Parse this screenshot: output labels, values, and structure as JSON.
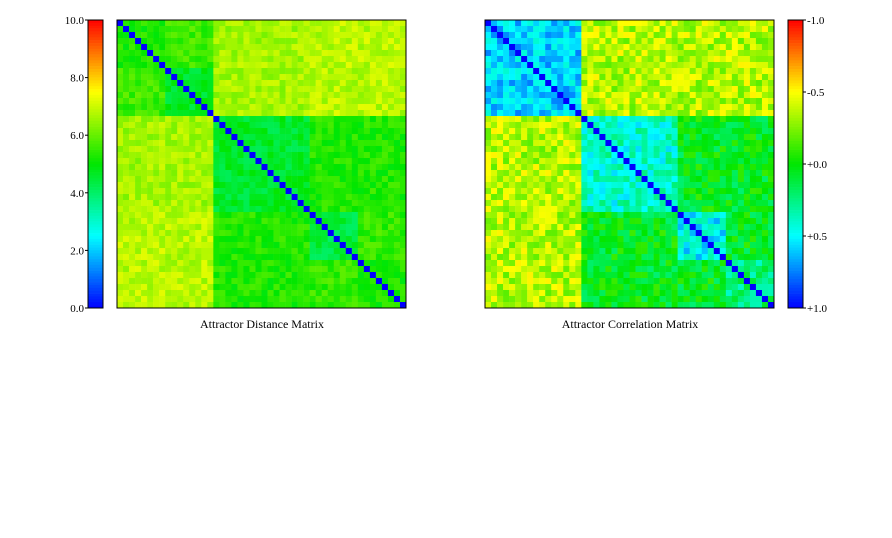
{
  "chart_data": [
    {
      "type": "heatmap",
      "title": "Attractor Distance Matrix",
      "size": 48,
      "diagonal_value": 0.0,
      "colorbar": {
        "position": "left",
        "range": [
          0.0,
          10.0
        ],
        "tick_labels": [
          "0.0",
          "2.0",
          "4.0",
          "6.0",
          "8.0",
          "10.0"
        ],
        "tick_values": [
          0.0,
          2.0,
          4.0,
          6.0,
          8.0,
          10.0
        ],
        "colormap": "rainbow (blue→cyan→green→yellow→red, low→high)"
      },
      "blocks": [
        {
          "rows": [
            0,
            7
          ],
          "cols": [
            0,
            7
          ],
          "value": 5.2
        },
        {
          "rows": [
            0,
            7
          ],
          "cols": [
            8,
            15
          ],
          "value": 5.6
        },
        {
          "rows": [
            0,
            7
          ],
          "cols": [
            16,
            31
          ],
          "value": 6.6
        },
        {
          "rows": [
            0,
            7
          ],
          "cols": [
            32,
            47
          ],
          "value": 6.8
        },
        {
          "rows": [
            8,
            15
          ],
          "cols": [
            0,
            7
          ],
          "value": 5.6
        },
        {
          "rows": [
            8,
            15
          ],
          "cols": [
            8,
            15
          ],
          "value": 4.7
        },
        {
          "rows": [
            8,
            15
          ],
          "cols": [
            16,
            31
          ],
          "value": 6.6
        },
        {
          "rows": [
            8,
            15
          ],
          "cols": [
            32,
            47
          ],
          "value": 6.8
        },
        {
          "rows": [
            16,
            31
          ],
          "cols": [
            0,
            15
          ],
          "value": 6.7
        },
        {
          "rows": [
            16,
            31
          ],
          "cols": [
            16,
            31
          ],
          "value": 4.6
        },
        {
          "rows": [
            16,
            31
          ],
          "cols": [
            32,
            47
          ],
          "value": 5.3
        },
        {
          "rows": [
            32,
            47
          ],
          "cols": [
            0,
            15
          ],
          "value": 6.9
        },
        {
          "rows": [
            32,
            47
          ],
          "cols": [
            16,
            31
          ],
          "value": 5.3
        },
        {
          "rows": [
            32,
            39
          ],
          "cols": [
            32,
            39
          ],
          "value": 4.4
        },
        {
          "rows": [
            32,
            39
          ],
          "cols": [
            40,
            47
          ],
          "value": 5.5
        },
        {
          "rows": [
            40,
            47
          ],
          "cols": [
            32,
            39
          ],
          "value": 5.5
        },
        {
          "rows": [
            40,
            47
          ],
          "cols": [
            40,
            47
          ],
          "value": 5.2
        }
      ]
    },
    {
      "type": "heatmap",
      "title": "Attractor Correlation Matrix",
      "size": 48,
      "diagonal_value": 1.0,
      "colorbar": {
        "position": "right",
        "range": [
          1.0,
          -1.0
        ],
        "tick_labels": [
          "+1.0",
          "+0.5",
          "+0.0",
          "-0.5",
          "-1.0"
        ],
        "tick_values": [
          1.0,
          0.5,
          0.0,
          -0.5,
          -1.0
        ],
        "colormap": "rainbow (blue→cyan→green→yellow→red, +1→-1)"
      },
      "blocks": [
        {
          "rows": [
            0,
            15
          ],
          "cols": [
            0,
            15
          ],
          "value": 0.58
        },
        {
          "rows": [
            0,
            15
          ],
          "cols": [
            16,
            47
          ],
          "value": -0.35
        },
        {
          "rows": [
            16,
            31
          ],
          "cols": [
            0,
            15
          ],
          "value": -0.35
        },
        {
          "rows": [
            16,
            31
          ],
          "cols": [
            16,
            31
          ],
          "value": 0.4
        },
        {
          "rows": [
            16,
            31
          ],
          "cols": [
            32,
            47
          ],
          "value": 0.05
        },
        {
          "rows": [
            32,
            47
          ],
          "cols": [
            0,
            15
          ],
          "value": -0.35
        },
        {
          "rows": [
            32,
            47
          ],
          "cols": [
            16,
            31
          ],
          "value": 0.05
        },
        {
          "rows": [
            32,
            39
          ],
          "cols": [
            32,
            39
          ],
          "value": 0.5
        },
        {
          "rows": [
            32,
            39
          ],
          "cols": [
            40,
            47
          ],
          "value": 0.05
        },
        {
          "rows": [
            40,
            47
          ],
          "cols": [
            32,
            39
          ],
          "value": 0.05
        },
        {
          "rows": [
            40,
            47
          ],
          "cols": [
            40,
            47
          ],
          "value": 0.25
        }
      ]
    }
  ]
}
